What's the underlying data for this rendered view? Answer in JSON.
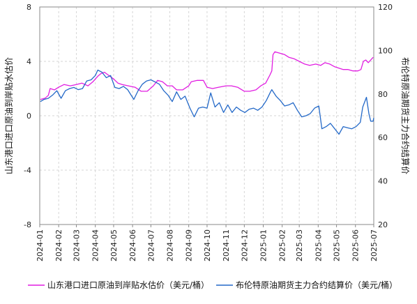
{
  "chart_data": {
    "type": "line",
    "title": "",
    "grid": true,
    "legend_position": "bottom",
    "x_tick_labels": [
      "2024-01",
      "2024-02",
      "2024-03",
      "2024-04",
      "2024-05",
      "2024-06",
      "2024-07",
      "2024-08",
      "2024-09",
      "2024-10",
      "2024-11",
      "2024-12",
      "2025-01",
      "2025-02",
      "2025-03",
      "2025-04",
      "2025-05",
      "2025-06",
      "2025-07"
    ],
    "x_range": [
      "2024-01",
      "2025-07"
    ],
    "y_left": {
      "label": "山东港口进口原油到岸贴水估价",
      "min": -8,
      "max": 8,
      "ticks": [
        8,
        4,
        0,
        -4,
        -8
      ],
      "tick_labels": [
        "8",
        "4",
        "0",
        "-4",
        "-8"
      ]
    },
    "y_right": {
      "label": "布伦特原油期货主力合约结算价",
      "min": 20,
      "max": 120,
      "ticks": [
        120,
        100,
        80,
        60,
        40,
        20
      ],
      "tick_labels": [
        "120",
        "100",
        "80",
        "60",
        "40",
        "20"
      ]
    },
    "series": [
      {
        "name": "山东港口进口原油到岸贴水估价（美元/桶）",
        "axis": "left",
        "color": "#e11de1",
        "points": [
          [
            "2024-01-02",
            1.2
          ],
          [
            "2024-01-10",
            1.3
          ],
          [
            "2024-01-15",
            1.5
          ],
          [
            "2024-01-18",
            2.0
          ],
          [
            "2024-01-25",
            1.9
          ],
          [
            "2024-02-01",
            2.1
          ],
          [
            "2024-02-10",
            2.3
          ],
          [
            "2024-02-20",
            2.2
          ],
          [
            "2024-03-01",
            2.3
          ],
          [
            "2024-03-10",
            2.4
          ],
          [
            "2024-03-20",
            2.2
          ],
          [
            "2024-03-28",
            2.5
          ],
          [
            "2024-04-05",
            2.9
          ],
          [
            "2024-04-10",
            3.1
          ],
          [
            "2024-04-16",
            3.2
          ],
          [
            "2024-04-22",
            3.0
          ],
          [
            "2024-05-01",
            2.7
          ],
          [
            "2024-05-08",
            2.4
          ],
          [
            "2024-05-15",
            2.3
          ],
          [
            "2024-05-25",
            2.2
          ],
          [
            "2024-06-05",
            2.1
          ],
          [
            "2024-06-15",
            1.8
          ],
          [
            "2024-06-25",
            1.8
          ],
          [
            "2024-07-05",
            2.2
          ],
          [
            "2024-07-12",
            2.6
          ],
          [
            "2024-07-20",
            2.5
          ],
          [
            "2024-07-28",
            2.2
          ],
          [
            "2024-08-05",
            2.2
          ],
          [
            "2024-08-12",
            1.9
          ],
          [
            "2024-08-22",
            1.9
          ],
          [
            "2024-09-01",
            2.2
          ],
          [
            "2024-09-05",
            2.5
          ],
          [
            "2024-09-15",
            2.6
          ],
          [
            "2024-09-25",
            2.6
          ],
          [
            "2024-10-01",
            2.1
          ],
          [
            "2024-10-10",
            2.0
          ],
          [
            "2024-10-20",
            2.1
          ],
          [
            "2024-11-01",
            2.2
          ],
          [
            "2024-11-10",
            2.2
          ],
          [
            "2024-11-20",
            2.1
          ],
          [
            "2024-12-01",
            1.8
          ],
          [
            "2024-12-10",
            1.8
          ],
          [
            "2024-12-20",
            1.9
          ],
          [
            "2024-12-28",
            2.2
          ],
          [
            "2025-01-05",
            2.4
          ],
          [
            "2025-01-12",
            3.0
          ],
          [
            "2025-01-15",
            3.3
          ],
          [
            "2025-01-17",
            4.5
          ],
          [
            "2025-01-20",
            4.7
          ],
          [
            "2025-01-28",
            4.6
          ],
          [
            "2025-02-05",
            4.5
          ],
          [
            "2025-02-12",
            4.3
          ],
          [
            "2025-02-20",
            4.2
          ],
          [
            "2025-03-01",
            4.0
          ],
          [
            "2025-03-10",
            3.8
          ],
          [
            "2025-03-18",
            3.7
          ],
          [
            "2025-03-28",
            3.8
          ],
          [
            "2025-04-05",
            3.7
          ],
          [
            "2025-04-12",
            3.9
          ],
          [
            "2025-04-20",
            3.8
          ],
          [
            "2025-04-28",
            3.6
          ],
          [
            "2025-05-05",
            3.5
          ],
          [
            "2025-05-12",
            3.4
          ],
          [
            "2025-05-20",
            3.4
          ],
          [
            "2025-05-28",
            3.3
          ],
          [
            "2025-06-05",
            3.3
          ],
          [
            "2025-06-10",
            3.4
          ],
          [
            "2025-06-14",
            4.0
          ],
          [
            "2025-06-18",
            4.1
          ],
          [
            "2025-06-22",
            3.9
          ],
          [
            "2025-06-26",
            4.1
          ],
          [
            "2025-06-30",
            4.3
          ]
        ]
      },
      {
        "name": "布伦特原油期货主力合约结算价（美元/桶）",
        "axis": "right",
        "color": "#2469c8",
        "points": [
          [
            "2024-01-02",
            76.5
          ],
          [
            "2024-01-08",
            77.5
          ],
          [
            "2024-01-15",
            78.0
          ],
          [
            "2024-01-22",
            79.5
          ],
          [
            "2024-01-29",
            81.5
          ],
          [
            "2024-02-05",
            78.0
          ],
          [
            "2024-02-12",
            81.5
          ],
          [
            "2024-02-19",
            82.5
          ],
          [
            "2024-02-26",
            83.0
          ],
          [
            "2024-03-04",
            82.0
          ],
          [
            "2024-03-11",
            82.5
          ],
          [
            "2024-03-18",
            86.0
          ],
          [
            "2024-03-25",
            86.5
          ],
          [
            "2024-04-01",
            88.5
          ],
          [
            "2024-04-05",
            91.0
          ],
          [
            "2024-04-12",
            90.0
          ],
          [
            "2024-04-19",
            87.5
          ],
          [
            "2024-04-26",
            88.5
          ],
          [
            "2024-05-03",
            83.0
          ],
          [
            "2024-05-10",
            82.5
          ],
          [
            "2024-05-17",
            83.5
          ],
          [
            "2024-05-24",
            82.0
          ],
          [
            "2024-06-03",
            77.5
          ],
          [
            "2024-06-10",
            81.5
          ],
          [
            "2024-06-17",
            84.5
          ],
          [
            "2024-06-24",
            86.0
          ],
          [
            "2024-07-01",
            86.5
          ],
          [
            "2024-07-08",
            85.5
          ],
          [
            "2024-07-15",
            84.5
          ],
          [
            "2024-07-22",
            81.5
          ],
          [
            "2024-07-29",
            79.5
          ],
          [
            "2024-08-05",
            76.5
          ],
          [
            "2024-08-12",
            81.0
          ],
          [
            "2024-08-19",
            77.5
          ],
          [
            "2024-08-26",
            79.0
          ],
          [
            "2024-09-03",
            73.5
          ],
          [
            "2024-09-10",
            69.5
          ],
          [
            "2024-09-17",
            73.5
          ],
          [
            "2024-09-24",
            74.0
          ],
          [
            "2024-10-01",
            73.5
          ],
          [
            "2024-10-07",
            80.5
          ],
          [
            "2024-10-14",
            74.0
          ],
          [
            "2024-10-21",
            76.0
          ],
          [
            "2024-10-28",
            71.5
          ],
          [
            "2024-11-04",
            75.0
          ],
          [
            "2024-11-11",
            71.5
          ],
          [
            "2024-11-18",
            74.0
          ],
          [
            "2024-11-25",
            72.5
          ],
          [
            "2024-12-02",
            71.5
          ],
          [
            "2024-12-09",
            73.0
          ],
          [
            "2024-12-16",
            73.5
          ],
          [
            "2024-12-23",
            72.5
          ],
          [
            "2024-12-30",
            74.0
          ],
          [
            "2025-01-06",
            77.0
          ],
          [
            "2025-01-13",
            81.0
          ],
          [
            "2025-01-15",
            82.0
          ],
          [
            "2025-01-22",
            79.0
          ],
          [
            "2025-01-29",
            77.0
          ],
          [
            "2025-02-05",
            74.5
          ],
          [
            "2025-02-12",
            75.0
          ],
          [
            "2025-02-19",
            76.0
          ],
          [
            "2025-02-26",
            72.5
          ],
          [
            "2025-03-05",
            69.5
          ],
          [
            "2025-03-12",
            70.0
          ],
          [
            "2025-03-19",
            71.0
          ],
          [
            "2025-03-26",
            73.5
          ],
          [
            "2025-04-02",
            74.5
          ],
          [
            "2025-04-07",
            64.0
          ],
          [
            "2025-04-14",
            65.0
          ],
          [
            "2025-04-21",
            66.5
          ],
          [
            "2025-04-28",
            64.0
          ],
          [
            "2025-05-05",
            61.5
          ],
          [
            "2025-05-12",
            65.0
          ],
          [
            "2025-05-19",
            64.5
          ],
          [
            "2025-05-26",
            64.0
          ],
          [
            "2025-06-02",
            65.0
          ],
          [
            "2025-06-09",
            67.0
          ],
          [
            "2025-06-13",
            74.0
          ],
          [
            "2025-06-19",
            78.5
          ],
          [
            "2025-06-23",
            71.0
          ],
          [
            "2025-06-26",
            67.5
          ],
          [
            "2025-06-30",
            67.5
          ],
          [
            "2025-07-01",
            69.0
          ]
        ]
      }
    ]
  }
}
